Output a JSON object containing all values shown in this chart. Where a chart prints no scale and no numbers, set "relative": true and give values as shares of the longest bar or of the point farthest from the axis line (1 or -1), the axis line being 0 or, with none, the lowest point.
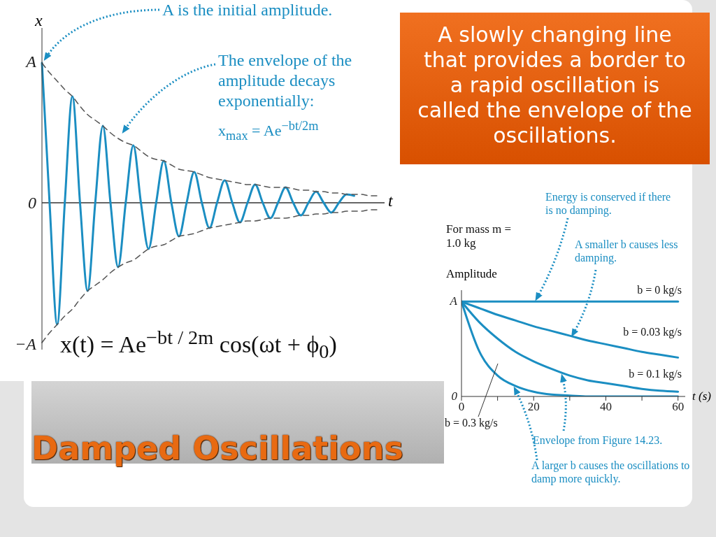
{
  "chart_data": [
    {
      "type": "line",
      "xlabel": "t",
      "ylabel": "x",
      "marker": "none",
      "relative": true,
      "categories": [
        null,
        null,
        null,
        null,
        null,
        null,
        null,
        null,
        null,
        null,
        null,
        null,
        null,
        null,
        null,
        null,
        null,
        null,
        null,
        null,
        null,
        null,
        null,
        null,
        null,
        null,
        null,
        null,
        null,
        null,
        null,
        null,
        null,
        null,
        null,
        null,
        null,
        null,
        null,
        null,
        null,
        null,
        null,
        null,
        null,
        null
      ],
      "series": [
        {
          "color": "#1b8ec2",
          "line_style": "solid",
          "values": [
            1.0,
            0,
            -0.87,
            0,
            0.76,
            0,
            -0.63,
            0,
            0.55,
            0,
            -0.46,
            0,
            0.41,
            0,
            -0.33,
            0,
            0.3,
            0,
            -0.24,
            0,
            0.22,
            0,
            -0.18,
            0,
            0.16,
            0,
            -0.14,
            0,
            0.13,
            0,
            -0.11,
            0,
            0.11,
            0,
            -0.09,
            0,
            0.08,
            0,
            -0.07,
            0,
            0.06,
            0.05,
            null,
            null,
            null,
            null
          ]
        },
        {
          "color": "#555555",
          "line_style": "dashed",
          "values": [
            1.0,
            0.93,
            0.87,
            0.81,
            0.76,
            0.69,
            0.63,
            0.59,
            0.55,
            0.5,
            0.46,
            0.43,
            0.41,
            0.37,
            0.33,
            0.31,
            0.3,
            0.27,
            0.24,
            0.23,
            0.22,
            0.2,
            0.18,
            0.17,
            0.16,
            0.15,
            0.14,
            0.13,
            0.13,
            0.12,
            0.11,
            0.11,
            0.11,
            0.1,
            0.09,
            0.09,
            0.08,
            0.08,
            0.07,
            0.07,
            0.06,
            0.06,
            0.06,
            0.05,
            0.05,
            null
          ]
        },
        {
          "color": "#555555",
          "line_style": "dashed",
          "values": [
            -1.0,
            -0.93,
            -0.87,
            -0.81,
            -0.76,
            -0.69,
            -0.63,
            -0.59,
            -0.55,
            -0.5,
            -0.46,
            -0.43,
            -0.41,
            -0.37,
            -0.33,
            -0.31,
            -0.3,
            -0.27,
            -0.24,
            -0.23,
            -0.22,
            -0.2,
            -0.18,
            -0.17,
            -0.16,
            -0.15,
            -0.14,
            -0.13,
            -0.13,
            -0.12,
            -0.11,
            -0.11,
            -0.11,
            -0.1,
            -0.09,
            -0.09,
            -0.08,
            -0.08,
            -0.07,
            -0.07,
            -0.06,
            -0.06,
            -0.06,
            -0.05,
            -0.05,
            null
          ]
        }
      ],
      "annotations": [
        "A is the initial amplitude.",
        "The envelope of the amplitude decays exponentially:",
        "x$_{max}$ = Ae$^{−bt/2m}$",
        "x(t) = Ae$^{−bt / 2m}$ cos(ωt + ϕ$_{0}$)",
        "A",
        "0",
        "−A"
      ]
    },
    {
      "type": "line",
      "xlabel": "t (s)",
      "ylabel": "Amplitude",
      "marker": "none",
      "relative": true,
      "x": [
        0,
        5,
        10,
        15,
        20,
        25,
        30,
        35,
        40,
        45,
        50,
        55,
        60
      ],
      "xlim": [
        0,
        62
      ],
      "xticks": [
        0,
        {
          "value": 10,
          "label": null
        },
        20,
        {
          "value": 30,
          "label": null
        },
        40,
        {
          "value": 50,
          "label": null
        },
        60
      ],
      "series": [
        {
          "name": "b = 0 kg/s",
          "color": "#1b8ec2",
          "values": [
            1,
            1,
            1,
            1,
            1,
            1,
            1,
            1,
            1,
            1,
            1,
            1,
            1
          ]
        },
        {
          "name": "b = 0.03 kg/s",
          "color": "#1b8ec2",
          "values": [
            1,
            0.93,
            0.86,
            0.8,
            0.74,
            0.69,
            0.64,
            0.59,
            0.55,
            0.51,
            0.47,
            0.44,
            0.41
          ]
        },
        {
          "name": "b = 0.1 kg/s",
          "color": "#1b8ec2",
          "values": [
            1,
            0.78,
            0.61,
            0.47,
            0.37,
            0.29,
            0.22,
            0.17,
            0.14,
            0.11,
            0.08,
            0.06,
            0.05
          ]
        },
        {
          "name": "b = 0.3 kg/s",
          "color": "#1b8ec2",
          "values": [
            1,
            0.47,
            0.22,
            0.11,
            0.05,
            0.02,
            0.01,
            0,
            0,
            0,
            0,
            0,
            0
          ]
        }
      ],
      "annotations": [
        "For mass m = 1.0 kg",
        {
          "text": "Energy is conserved if there is no damping.",
          "x": 21,
          "y": 1
        },
        {
          "text": "A smaller b causes less damping.",
          "x": 31,
          "y": 0.62
        },
        {
          "text": "Envelope from Figure 14.23.",
          "x": 28,
          "y": 0.24
        },
        {
          "text": "A larger b causes the oscillations to damp more quickly.",
          "x": 15,
          "y": 0.11
        },
        "A",
        "0"
      ]
    },
    {
      "type": "other",
      "title": "Damped Oscillations",
      "annotations": [
        "A slowly changing line that provides a border to a rapid oscillation is called the envelope of the oscillations."
      ]
    }
  ]
}
